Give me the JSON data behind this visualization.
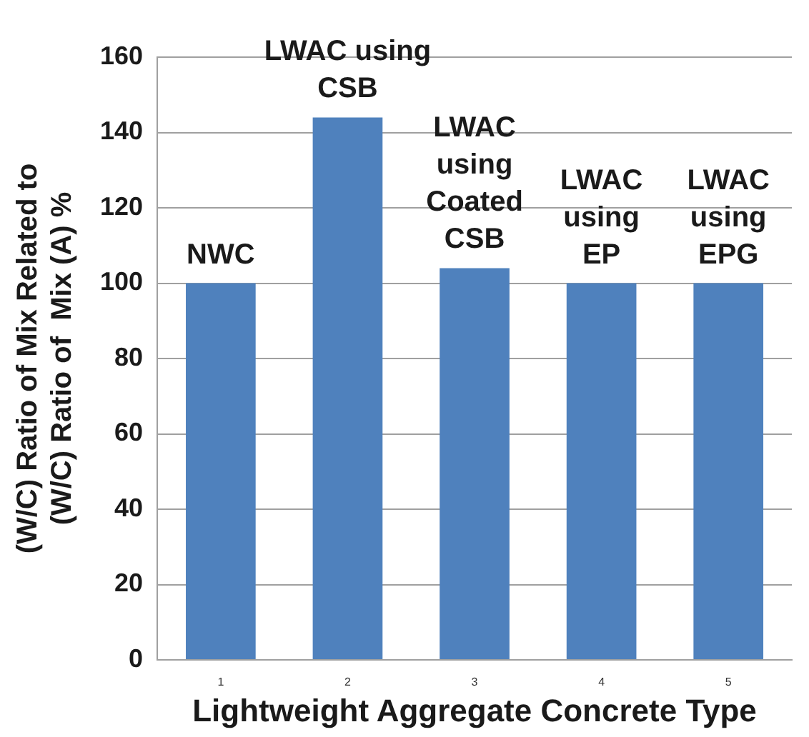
{
  "chart_data": {
    "type": "bar",
    "xlabel": "Lightweight Aggregate Concrete Type",
    "ylabel": "(W/C) Ratio of Mix Related to\n(W/C) Ratio of  Mix (A) %",
    "categories": [
      "1",
      "2",
      "3",
      "4",
      "5"
    ],
    "values": [
      100,
      144,
      104,
      100,
      100
    ],
    "color": "#4f81bd",
    "ylim": [
      0,
      160
    ],
    "yticks": [
      0,
      20,
      40,
      60,
      80,
      100,
      120,
      140,
      160
    ],
    "grid": "y",
    "annotations": [
      {
        "text": "NWC",
        "x": "1",
        "y": 100
      },
      {
        "text": "LWAC using\nCSB",
        "x": "2",
        "y": 144
      },
      {
        "text": "LWAC\nusing\nCoated\nCSB",
        "x": "3",
        "y": 104
      },
      {
        "text": "LWAC\nusing\nEP",
        "x": "4",
        "y": 100
      },
      {
        "text": "LWAC\nusing\nEPG",
        "x": "5",
        "y": 100
      }
    ]
  }
}
